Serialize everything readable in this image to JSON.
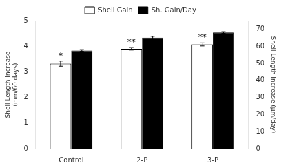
{
  "chart_data": {
    "type": "bar",
    "categories": [
      "Control",
      "2-P",
      "3-P"
    ],
    "series": [
      {
        "name": "Shell Gain",
        "color": "#ffffff",
        "values": [
          3.32,
          3.9,
          4.07
        ],
        "errors": [
          0.1,
          0.05,
          0.06
        ]
      },
      {
        "name": "Sh. Gain/Day",
        "color": "#000000",
        "values": [
          57.5,
          65.0,
          68.0
        ],
        "errors": [
          0.5,
          0.8,
          0.5
        ],
        "axis": "y2"
      }
    ],
    "ylabel": "Shell Length Increase\n(mm/60 days)",
    "y2label": "Shell Length Increase (μm/day)",
    "ylim": [
      0,
      5
    ],
    "yticks": [
      0,
      1,
      2,
      3,
      4,
      5
    ],
    "y2lim": [
      0,
      75
    ],
    "y2ticks": [
      0,
      10,
      20,
      30,
      40,
      50,
      60,
      70
    ],
    "annotations": [
      {
        "text": "*",
        "category": "Control",
        "series": "Shell Gain"
      },
      {
        "text": "**",
        "category": "2-P",
        "series": "Shell Gain"
      },
      {
        "text": "**",
        "category": "3-P",
        "series": "Shell Gain"
      }
    ],
    "legend": "top",
    "grid": false
  }
}
